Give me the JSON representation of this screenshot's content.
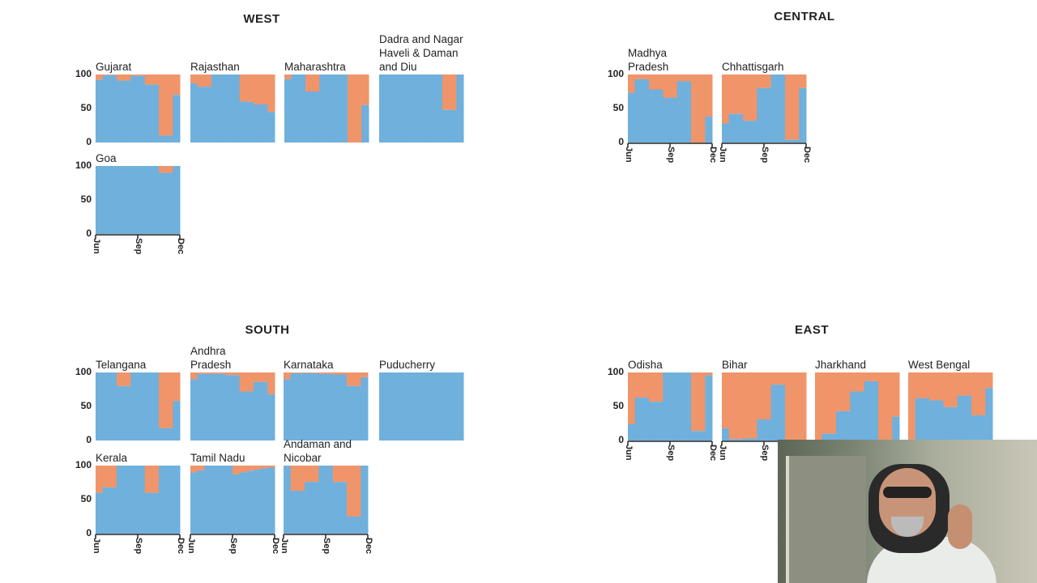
{
  "colors": {
    "blue": "#6fb0dc",
    "orange": "#f0946a"
  },
  "chart_data": {
    "type": "area",
    "stacked": true,
    "percent": true,
    "ylim": [
      0,
      100
    ],
    "yticks": [
      "100",
      "50",
      "0"
    ],
    "xticks": [
      "Jun",
      "Sep",
      "Dec"
    ],
    "x": [
      "Jun 1",
      "Jun 16",
      "Jul 1",
      "Jul 16",
      "Aug 1",
      "Aug 16",
      "Sep 1",
      "Sep 16",
      "Oct 1",
      "Oct 16",
      "Nov 1",
      "Nov 16"
    ],
    "value_note_series": "values = blue share (%), orange = remainder to 100",
    "regions": [
      {
        "title": "WEST",
        "panels": [
          {
            "state": "Gujarat",
            "values": [
              92,
              99,
              99,
              91,
              91,
              98,
              98,
              85,
              85,
              10,
              10,
              70
            ]
          },
          {
            "state": "Rajasthan",
            "values": [
              87,
              82,
              82,
              100,
              100,
              100,
              100,
              60,
              60,
              56,
              56,
              45
            ]
          },
          {
            "state": "Maharashtra",
            "values": [
              93,
              100,
              100,
              75,
              75,
              100,
              100,
              100,
              100,
              0,
              0,
              55
            ]
          },
          {
            "state": "Dadra and Nagar Haveli & Daman and Diu",
            "values": [
              100,
              100,
              100,
              100,
              100,
              100,
              100,
              100,
              100,
              48,
              48,
              100
            ]
          },
          {
            "state": "Goa",
            "values": [
              100,
              100,
              100,
              100,
              100,
              100,
              100,
              100,
              100,
              90,
              90,
              100
            ]
          }
        ]
      },
      {
        "title": "CENTRAL",
        "panels": [
          {
            "state": "Madhya Pradesh",
            "values": [
              73,
              93,
              93,
              78,
              78,
              66,
              66,
              90,
              90,
              0,
              0,
              38
            ]
          },
          {
            "state": "Chhattisgarh",
            "values": [
              28,
              42,
              42,
              32,
              32,
              80,
              80,
              100,
              100,
              4,
              4,
              80
            ]
          }
        ]
      },
      {
        "title": "SOUTH",
        "panels": [
          {
            "state": "Telangana",
            "values": [
              100,
              100,
              100,
              80,
              80,
              100,
              100,
              100,
              100,
              18,
              18,
              58
            ]
          },
          {
            "state": "Andhra Pradesh",
            "values": [
              90,
              98,
              98,
              98,
              98,
              96,
              96,
              72,
              72,
              86,
              86,
              68
            ]
          },
          {
            "state": "Karnataka",
            "values": [
              90,
              99,
              99,
              99,
              99,
              98,
              98,
              97,
              97,
              80,
              80,
              93
            ]
          },
          {
            "state": "Puducherry",
            "values": [
              100,
              100,
              100,
              100,
              100,
              100,
              100,
              100,
              100,
              100,
              100,
              100
            ]
          },
          {
            "state": "Kerala",
            "values": [
              60,
              68,
              68,
              100,
              100,
              100,
              100,
              60,
              60,
              100,
              100,
              100
            ]
          },
          {
            "state": "Tamil Nadu",
            "values": [
              90,
              93,
              100,
              100,
              100,
              100,
              87,
              90,
              92,
              94,
              96,
              97
            ]
          },
          {
            "state": "Andaman and Nicobar",
            "values": [
              100,
              63,
              63,
              76,
              76,
              100,
              100,
              76,
              76,
              25,
              25,
              100
            ]
          }
        ]
      },
      {
        "title": "EAST",
        "panels": [
          {
            "state": "Odisha",
            "values": [
              24,
              63,
              63,
              57,
              57,
              100,
              100,
              100,
              100,
              14,
              14,
              96
            ]
          },
          {
            "state": "Bihar",
            "values": [
              18,
              2,
              2,
              3,
              3,
              31,
              31,
              82,
              82,
              0,
              0,
              0
            ]
          },
          {
            "state": "Jharkhand",
            "values": [
              0,
              10,
              10,
              43,
              43,
              72,
              72,
              87,
              87,
              0,
              0,
              35
            ]
          },
          {
            "state": "West Bengal",
            "values": [
              0,
              62,
              62,
              59,
              59,
              49,
              49,
              66,
              66,
              37,
              37,
              77
            ]
          }
        ]
      }
    ]
  }
}
